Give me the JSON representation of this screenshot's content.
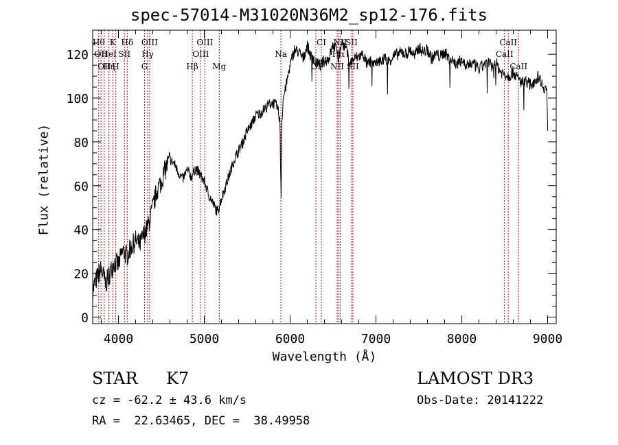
{
  "chart_data": {
    "type": "line",
    "title": "spec-57014-M31020N36M2_sp12-176.fits",
    "xlabel": "Wavelength (Å)",
    "ylabel": "Flux (relative)",
    "xlim": [
      3700,
      9100
    ],
    "ylim": [
      -3,
      131
    ],
    "x_ticks": [
      4000,
      5000,
      6000,
      7000,
      8000,
      9000
    ],
    "y_ticks": [
      0,
      20,
      40,
      60,
      80,
      100,
      120
    ],
    "line_color": "#000000",
    "marker_color": "#cc0000",
    "grid": false,
    "series": [
      {
        "x": [
          3700,
          3750,
          3800,
          3850,
          3900,
          3950,
          4000,
          4050,
          4100,
          4150,
          4200,
          4250,
          4300,
          4350,
          4400,
          4450,
          4500,
          4550,
          4600,
          4650,
          4700,
          4750,
          4800,
          4850,
          4900,
          4950,
          5000,
          5050,
          5100,
          5150,
          5200,
          5250,
          5300,
          5350,
          5400,
          5450,
          5500,
          5550,
          5600,
          5650,
          5700,
          5750,
          5800,
          5850,
          5880,
          5895,
          5905,
          5920,
          5950,
          6000,
          6050,
          6100,
          6150,
          6200,
          6250,
          6300,
          6350,
          6400,
          6450,
          6500,
          6550,
          6563,
          6580,
          6600,
          6650,
          6700,
          6750,
          6800,
          6850,
          6900,
          6950,
          7000,
          7050,
          7100,
          7150,
          7200,
          7250,
          7300,
          7350,
          7400,
          7450,
          7500,
          7550,
          7600,
          7650,
          7700,
          7750,
          7800,
          7850,
          7900,
          7950,
          8000,
          8050,
          8100,
          8150,
          8200,
          8250,
          8300,
          8350,
          8400,
          8450,
          8500,
          8550,
          8600,
          8650,
          8700,
          8750,
          8800,
          8850,
          8900,
          8950,
          8990,
          9000
        ],
        "y": [
          12,
          18,
          22,
          15,
          20,
          25,
          24,
          30,
          28,
          32,
          35,
          33,
          38,
          42,
          50,
          58,
          62,
          68,
          72,
          70,
          66,
          63,
          67,
          64,
          68,
          65,
          62,
          56,
          52,
          48,
          54,
          60,
          66,
          72,
          76,
          80,
          85,
          88,
          92,
          93,
          95,
          97,
          98,
          96,
          90,
          55,
          90,
          100,
          105,
          115,
          122,
          121,
          118,
          124,
          118,
          116,
          115,
          117,
          118,
          124,
          122,
          118,
          121,
          126,
          122,
          116,
          118,
          119,
          120,
          115,
          117,
          115,
          117,
          118,
          117,
          119,
          120,
          121,
          120,
          122,
          119,
          123,
          121,
          122,
          118,
          120,
          119,
          121,
          118,
          117,
          115,
          118,
          114,
          116,
          115,
          113,
          115,
          117,
          114,
          116,
          112,
          111,
          110,
          112,
          109,
          107,
          108,
          106,
          108,
          110,
          105,
          104,
          85
        ]
      }
    ],
    "line_markers": [
      {
        "x": 3770,
        "label": "Hθ",
        "row": 0
      },
      {
        "x": 3797,
        "label": "OII",
        "row": 1
      },
      {
        "x": 3835,
        "label": "OII",
        "row": 2
      },
      {
        "x": 3889,
        "label": "Hη",
        "row": 2
      },
      {
        "x": 3889,
        "label": "HeI",
        "row": 1
      },
      {
        "x": 3934,
        "label": "K",
        "row": 0
      },
      {
        "x": 3969,
        "label": "H",
        "row": 2
      },
      {
        "x": 4070,
        "label": "SII",
        "row": 1
      },
      {
        "x": 4102,
        "label": "Hδ",
        "row": 0
      },
      {
        "x": 4304,
        "label": "G",
        "row": 2
      },
      {
        "x": 4340,
        "label": "Hγ",
        "row": 1
      },
      {
        "x": 4363,
        "label": "OIII",
        "row": 0
      },
      {
        "x": 4861,
        "label": "Hβ",
        "row": 2
      },
      {
        "x": 4959,
        "label": "OIII",
        "row": 1
      },
      {
        "x": 5007,
        "label": "OIII",
        "row": 0
      },
      {
        "x": 5175,
        "label": "Mg",
        "row": 2
      },
      {
        "x": 5893,
        "label": "Na",
        "row": 1
      },
      {
        "x": 6300,
        "label": "OI",
        "row": 2
      },
      {
        "x": 6364,
        "label": "CI",
        "row": 0
      },
      {
        "x": 6548,
        "label": "NII",
        "row": 2
      },
      {
        "x": 6563,
        "label": "Hα",
        "row": 1
      },
      {
        "x": 6583,
        "label": "NII",
        "row": 0
      },
      {
        "x": 6716,
        "label": "SII",
        "row": 0
      },
      {
        "x": 6731,
        "label": "SII",
        "row": 2
      },
      {
        "x": 8498,
        "label": "CaII",
        "row": 1
      },
      {
        "x": 8542,
        "label": "CaII",
        "row": 0
      },
      {
        "x": 8662,
        "label": "CaII",
        "row": 2
      }
    ]
  },
  "info": {
    "object_class": "STAR",
    "subclass": "K7",
    "survey": "LAMOST DR3",
    "redshift": "cz = -62.2 ± 43.6 km/s",
    "obs_date": "Obs-Date: 20141222",
    "coords": "RA =  22.63465, DEC =  38.49958"
  }
}
